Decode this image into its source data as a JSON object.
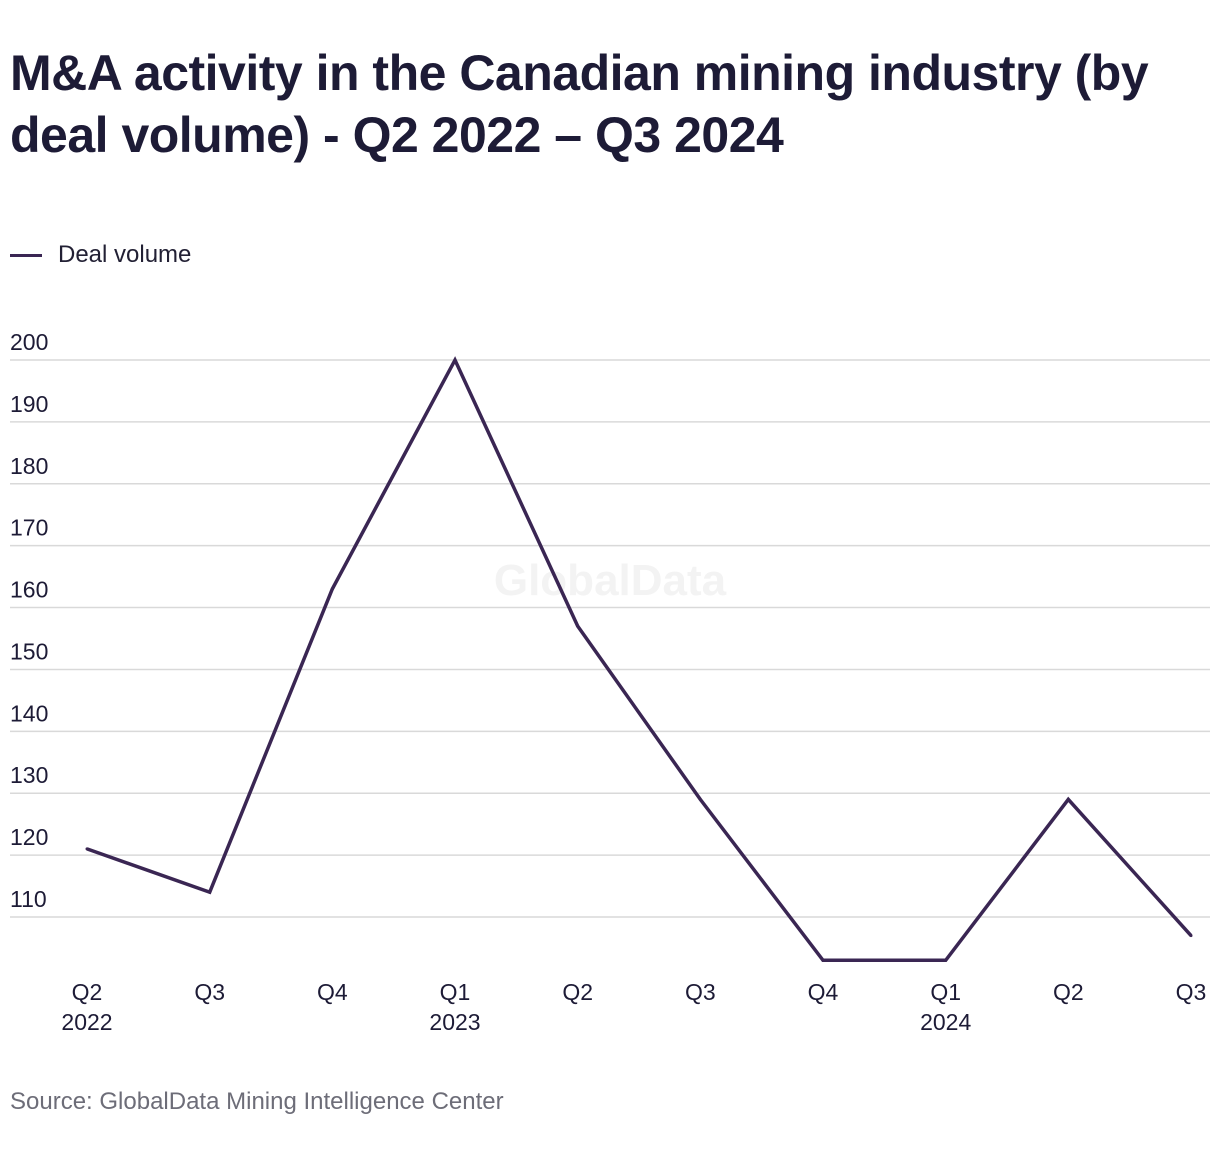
{
  "title": "M&A activity in the Canadian mining industry (by deal volume) - Q2 2022 – Q3 2024",
  "legend": {
    "label": "Deal volume"
  },
  "watermark": "GlobalData",
  "source": "Source: GlobalData Mining Intelligence Center",
  "colors": {
    "line": "#3a2653",
    "grid": "#d9d9d9",
    "text": "#1d1b36",
    "watermark": "#f3f3f3",
    "source": "#6d6d78"
  },
  "chart_data": {
    "type": "line",
    "title": "M&A activity in the Canadian mining industry (by deal volume) - Q2 2022 – Q3 2024",
    "xlabel": "",
    "ylabel": "",
    "categories": [
      [
        "Q2",
        "2022"
      ],
      [
        "Q3",
        ""
      ],
      [
        "Q4",
        ""
      ],
      [
        "Q1",
        "2023"
      ],
      [
        "Q2",
        ""
      ],
      [
        "Q3",
        ""
      ],
      [
        "Q4",
        ""
      ],
      [
        "Q1",
        "2024"
      ],
      [
        "Q2",
        ""
      ],
      [
        "Q3",
        ""
      ]
    ],
    "series": [
      {
        "name": "Deal volume",
        "values": [
          121,
          114,
          163,
          200,
          157,
          129,
          103,
          103,
          129,
          107
        ]
      }
    ],
    "yticks": [
      110,
      120,
      130,
      140,
      150,
      160,
      170,
      180,
      190,
      200
    ],
    "ylim": [
      99,
      200
    ],
    "grid": true,
    "legend_position": "top-left"
  }
}
